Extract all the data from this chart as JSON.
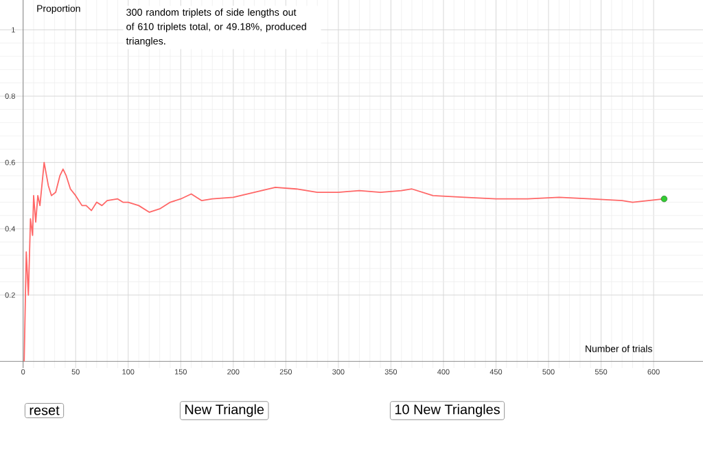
{
  "chart_data": {
    "type": "line",
    "xlabel": "Number of trials",
    "ylabel": "Proportion",
    "annotations": [
      "300 random triplets of side lengths out of 610 triplets total, or 49.18%, produced triangles.",
      "reset",
      "New Triangle",
      "10 New Triangles"
    ],
    "xlim": [
      -22,
      647
    ],
    "ylim": [
      -0.02,
      1.09
    ],
    "xticks": [
      0,
      50,
      100,
      150,
      200,
      250,
      300,
      350,
      400,
      450,
      500,
      550,
      600
    ],
    "yticks": [
      0.2,
      0.4,
      0.6,
      0.8,
      1
    ],
    "grid": true,
    "series": [
      {
        "color": "#ff6666",
        "marker": "none",
        "x": [
          1,
          3,
          5,
          7,
          9,
          10,
          12,
          14,
          16,
          20,
          24,
          27,
          31,
          35,
          38,
          41,
          45,
          50,
          56,
          60,
          65,
          70,
          75,
          80,
          90,
          95,
          100,
          110,
          120,
          130,
          140,
          150,
          160,
          170,
          180,
          200,
          220,
          240,
          260,
          280,
          300,
          320,
          340,
          360,
          370,
          390,
          420,
          450,
          480,
          510,
          540,
          570,
          580,
          610
        ],
        "values": [
          0,
          0.33,
          0.2,
          0.43,
          0.38,
          0.5,
          0.42,
          0.5,
          0.47,
          0.6,
          0.53,
          0.5,
          0.51,
          0.56,
          0.58,
          0.56,
          0.52,
          0.5,
          0.47,
          0.47,
          0.455,
          0.48,
          0.47,
          0.485,
          0.49,
          0.48,
          0.48,
          0.47,
          0.45,
          0.46,
          0.48,
          0.49,
          0.505,
          0.485,
          0.49,
          0.495,
          0.51,
          0.525,
          0.52,
          0.51,
          0.51,
          0.515,
          0.51,
          0.515,
          0.52,
          0.5,
          0.495,
          0.49,
          0.49,
          0.495,
          0.49,
          0.485,
          0.48,
          0.49
        ]
      },
      {
        "type": "scatter",
        "color": "#33cc33",
        "marker": "circle",
        "x": [
          610
        ],
        "values": [
          0.49
        ]
      }
    ]
  }
}
